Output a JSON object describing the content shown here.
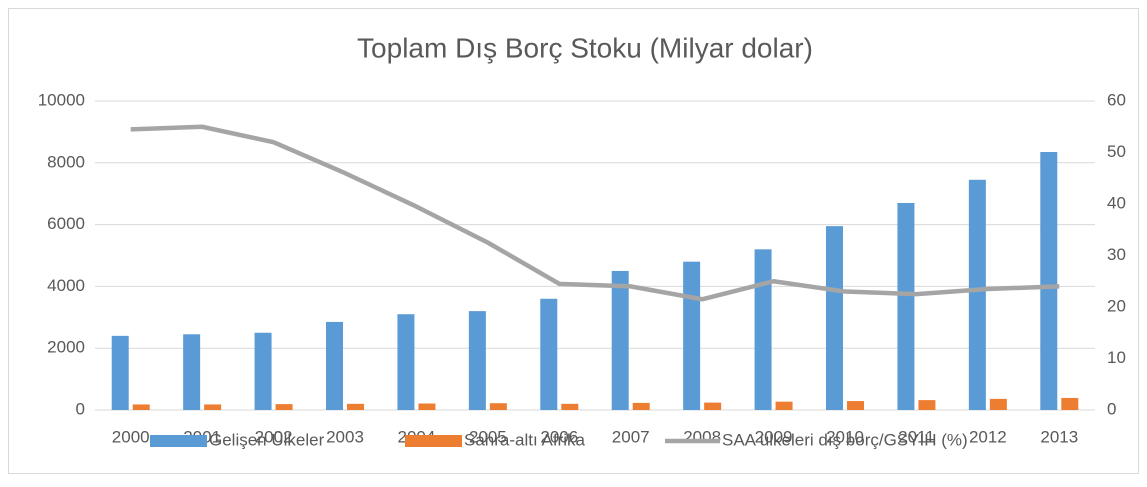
{
  "chart_data": {
    "type": "bar",
    "title": "Toplam Dış Borç Stoku (Milyar dolar)",
    "categories": [
      "2000",
      "2001",
      "2002",
      "2003",
      "2004",
      "2005",
      "2006",
      "2007",
      "2008",
      "2009",
      "2010",
      "2011",
      "2012",
      "2013"
    ],
    "series": [
      {
        "name": "Gelişen Ülkeler",
        "color": "#5b9bd5",
        "type": "bar",
        "values": [
          2400,
          2450,
          2500,
          2850,
          3100,
          3200,
          3600,
          4500,
          4800,
          5200,
          5950,
          6700,
          7450,
          8350
        ]
      },
      {
        "name": "Sahra-altı Afrika",
        "color": "#ed7d31",
        "type": "bar",
        "values": [
          180,
          180,
          190,
          200,
          210,
          220,
          200,
          230,
          240,
          270,
          290,
          320,
          360,
          390
        ]
      },
      {
        "name": "SAA ülkeleri dış borç/GSYİH (%)",
        "color": "#a5a5a5",
        "type": "line",
        "axis": "y2",
        "values": [
          54.5,
          55,
          52,
          46,
          39.5,
          32.5,
          24.5,
          24,
          21.5,
          25,
          23,
          22.5,
          23.5,
          24
        ]
      }
    ],
    "ylim": [
      0,
      10000
    ],
    "yticks": [
      0,
      2000,
      4000,
      6000,
      8000,
      10000
    ],
    "y2lim": [
      0,
      60
    ],
    "y2ticks": [
      0,
      10,
      20,
      30,
      40,
      50,
      60
    ],
    "grid": true,
    "legend": "bottom"
  }
}
